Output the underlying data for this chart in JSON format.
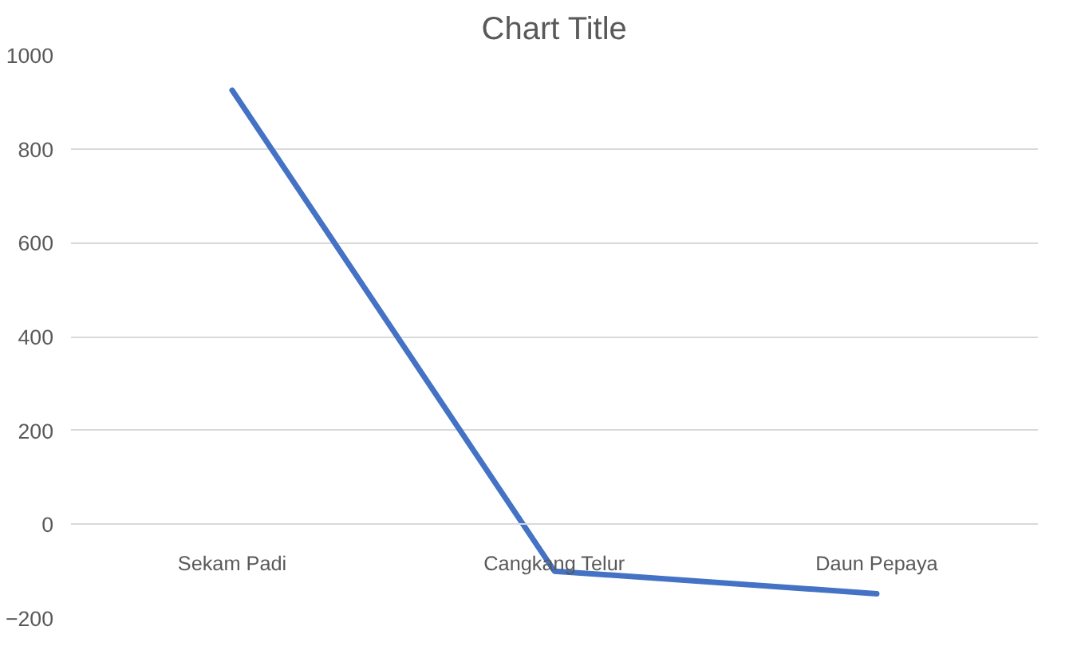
{
  "chart_data": {
    "type": "line",
    "title": "Chart Title",
    "categories": [
      "Sekam Padi",
      "Cangkang Telur",
      "Daun Pepaya"
    ],
    "series": [
      {
        "color": "#4472c4",
        "values": [
          925,
          -100,
          -148
        ]
      }
    ],
    "ylim": [
      -200,
      1000
    ],
    "yticks": [
      -200,
      0,
      200,
      400,
      600,
      800,
      1000
    ],
    "grid": "y",
    "marker": "none",
    "line_style": "solid"
  }
}
